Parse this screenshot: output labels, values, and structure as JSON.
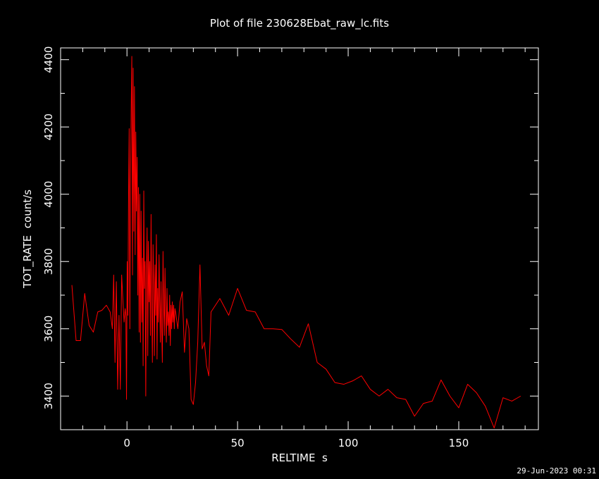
{
  "chart_data": {
    "type": "line",
    "title": "Plot of file 230628Ebat_raw_lc.fits",
    "xlabel": "RELTIME  s",
    "ylabel": "TOT_RATE  count/s",
    "xlim": [
      -30,
      186
    ],
    "ylim": [
      3300,
      4435
    ],
    "x_ticks": [
      0,
      50,
      100,
      150
    ],
    "y_ticks": [
      3400,
      3600,
      3800,
      4000,
      4200,
      4400
    ],
    "grid": false,
    "background": "#000000",
    "axis_color": "#ffffff",
    "series": [
      {
        "color": "#ff0000",
        "points": [
          [
            -24.9,
            3730
          ],
          [
            -23.0,
            3565
          ],
          [
            -21.0,
            3565
          ],
          [
            -19.1,
            3705
          ],
          [
            -17.1,
            3610
          ],
          [
            -15.2,
            3590
          ],
          [
            -13.2,
            3650
          ],
          [
            -11.3,
            3655
          ],
          [
            -9.3,
            3670
          ],
          [
            -7.6,
            3650
          ],
          [
            -6.6,
            3600
          ],
          [
            -6.0,
            3760
          ],
          [
            -5.4,
            3500
          ],
          [
            -4.8,
            3740
          ],
          [
            -4.2,
            3420
          ],
          [
            -3.6,
            3640
          ],
          [
            -3.0,
            3420
          ],
          [
            -2.4,
            3760
          ],
          [
            -1.8,
            3680
          ],
          [
            -1.3,
            3620
          ],
          [
            -0.8,
            3660
          ],
          [
            -0.5,
            3640
          ],
          [
            -0.2,
            3390
          ],
          [
            0.1,
            3800
          ],
          [
            0.4,
            3640
          ],
          [
            0.7,
            3970
          ],
          [
            1.0,
            4195
          ],
          [
            1.3,
            3600
          ],
          [
            1.6,
            4020
          ],
          [
            1.9,
            4250
          ],
          [
            2.2,
            4410
          ],
          [
            2.5,
            3760
          ],
          [
            2.8,
            4375
          ],
          [
            3.1,
            3890
          ],
          [
            3.4,
            4320
          ],
          [
            3.7,
            3820
          ],
          [
            4.0,
            4185
          ],
          [
            4.3,
            3950
          ],
          [
            4.6,
            4110
          ],
          [
            4.9,
            3700
          ],
          [
            5.2,
            4020
          ],
          [
            5.5,
            3590
          ],
          [
            5.8,
            4000
          ],
          [
            6.1,
            3560
          ],
          [
            6.4,
            3950
          ],
          [
            6.7,
            3620
          ],
          [
            7.0,
            3810
          ],
          [
            7.3,
            3490
          ],
          [
            7.6,
            4010
          ],
          [
            7.9,
            3720
          ],
          [
            8.2,
            3800
          ],
          [
            8.5,
            3400
          ],
          [
            8.8,
            3760
          ],
          [
            9.1,
            3900
          ],
          [
            9.4,
            3520
          ],
          [
            9.7,
            3860
          ],
          [
            10.0,
            3680
          ],
          [
            10.3,
            3800
          ],
          [
            10.6,
            3580
          ],
          [
            10.9,
            3940
          ],
          [
            11.2,
            3670
          ],
          [
            11.5,
            3500
          ],
          [
            11.8,
            3850
          ],
          [
            12.1,
            3730
          ],
          [
            12.4,
            3520
          ],
          [
            12.7,
            3790
          ],
          [
            13.0,
            3640
          ],
          [
            13.3,
            3880
          ],
          [
            13.6,
            3510
          ],
          [
            13.9,
            3720
          ],
          [
            14.2,
            3620
          ],
          [
            14.5,
            3820
          ],
          [
            14.8,
            3680
          ],
          [
            15.1,
            3560
          ],
          [
            15.4,
            3740
          ],
          [
            15.7,
            3600
          ],
          [
            16.0,
            3500
          ],
          [
            16.3,
            3830
          ],
          [
            16.6,
            3670
          ],
          [
            16.9,
            3580
          ],
          [
            17.2,
            3780
          ],
          [
            17.5,
            3640
          ],
          [
            17.8,
            3560
          ],
          [
            18.1,
            3720
          ],
          [
            18.4,
            3610
          ],
          [
            18.7,
            3650
          ],
          [
            19.0,
            3580
          ],
          [
            19.3,
            3700
          ],
          [
            19.6,
            3550
          ],
          [
            19.9,
            3670
          ],
          [
            20.2,
            3600
          ],
          [
            20.5,
            3680
          ],
          [
            20.8,
            3620
          ],
          [
            21.1,
            3670
          ],
          [
            21.4,
            3600
          ],
          [
            21.7,
            3660
          ],
          [
            22.0,
            3650
          ],
          [
            23.0,
            3600
          ],
          [
            24.0,
            3680
          ],
          [
            25.0,
            3710
          ],
          [
            26.0,
            3530
          ],
          [
            27.0,
            3630
          ],
          [
            28.0,
            3600
          ],
          [
            29.0,
            3390
          ],
          [
            30.0,
            3375
          ],
          [
            31.0,
            3440
          ],
          [
            32.0,
            3560
          ],
          [
            33.0,
            3790
          ],
          [
            34.0,
            3540
          ],
          [
            35.0,
            3560
          ],
          [
            36.0,
            3490
          ],
          [
            37.0,
            3460
          ],
          [
            38.0,
            3650
          ],
          [
            42.0,
            3690
          ],
          [
            46.0,
            3640
          ],
          [
            50.0,
            3720
          ],
          [
            54.0,
            3655
          ],
          [
            58.0,
            3650
          ],
          [
            62.0,
            3600
          ],
          [
            66.0,
            3600
          ],
          [
            70.0,
            3598
          ],
          [
            74.0,
            3570
          ],
          [
            78.0,
            3545
          ],
          [
            82.0,
            3615
          ],
          [
            86.0,
            3500
          ],
          [
            90.0,
            3480
          ],
          [
            94.0,
            3440
          ],
          [
            98.0,
            3435
          ],
          [
            102.0,
            3445
          ],
          [
            106.0,
            3460
          ],
          [
            110.0,
            3420
          ],
          [
            114.0,
            3400
          ],
          [
            118.0,
            3420
          ],
          [
            122.0,
            3395
          ],
          [
            126.0,
            3390
          ],
          [
            130.0,
            3340
          ],
          [
            134.0,
            3378
          ],
          [
            138.0,
            3385
          ],
          [
            142.0,
            3448
          ],
          [
            146.0,
            3400
          ],
          [
            150.0,
            3365
          ],
          [
            154.0,
            3435
          ],
          [
            158.0,
            3410
          ],
          [
            162.0,
            3370
          ],
          [
            166.0,
            3305
          ],
          [
            170.0,
            3395
          ],
          [
            174.0,
            3385
          ],
          [
            178.0,
            3400
          ]
        ]
      }
    ]
  },
  "timestamp": "29-Jun-2023 00:31"
}
